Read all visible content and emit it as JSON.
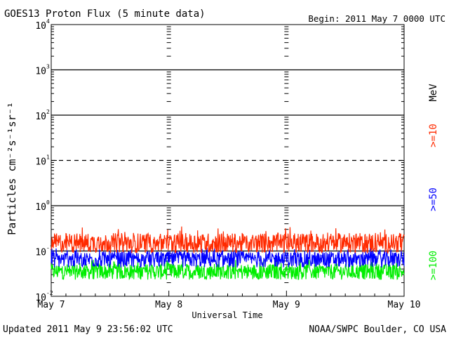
{
  "header": {
    "title": "GOES13 Proton Flux (5 minute data)",
    "begin": "Begin: 2011 May 7 0000 UTC"
  },
  "footer": {
    "updated": "Updated 2011 May  9 23:56:02 UTC",
    "credit": "NOAA/SWPC Boulder, CO USA"
  },
  "chart_data": {
    "type": "line",
    "title": "GOES13 Proton Flux (5 minute data)",
    "ylabel": "Particles cm⁻²s⁻¹sr⁻¹",
    "xlabel": "Universal Time",
    "yscale": "log",
    "ylim": [
      0.01,
      10000
    ],
    "y_ticks": [
      {
        "base": "10",
        "exp": "4"
      },
      {
        "base": "10",
        "exp": "3"
      },
      {
        "base": "10",
        "exp": "2"
      },
      {
        "base": "10",
        "exp": "1"
      },
      {
        "base": "10",
        "exp": "0"
      },
      {
        "base": "10",
        "exp": "-1"
      },
      {
        "base": "10",
        "exp": "-2"
      }
    ],
    "x_ticks": [
      "May 7",
      "May 8",
      "May 9",
      "May 10"
    ],
    "xlim": [
      "2011-05-07",
      "2011-05-10"
    ],
    "units_label": "MeV",
    "thresholds": [
      {
        "value": 1000,
        "style": "solid"
      },
      {
        "value": 100,
        "style": "solid"
      },
      {
        "value": 10,
        "style": "dashed"
      },
      {
        "value": 1,
        "style": "solid"
      },
      {
        "value": 0.1,
        "style": "solid"
      }
    ],
    "series": [
      {
        "name": ">=10",
        "color": "#ff2a00",
        "mean": 0.15,
        "min": 0.09,
        "max": 0.35
      },
      {
        "name": ">=50",
        "color": "#0000ff",
        "mean": 0.065,
        "min": 0.04,
        "max": 0.12
      },
      {
        "name": ">=100",
        "color": "#00ee00",
        "mean": 0.035,
        "min": 0.022,
        "max": 0.065
      }
    ],
    "grid": false,
    "legend": "right-vertical"
  },
  "colors": {
    "gt10": "#ff2a00",
    "gt50": "#0000ff",
    "gt100": "#00ee00"
  }
}
